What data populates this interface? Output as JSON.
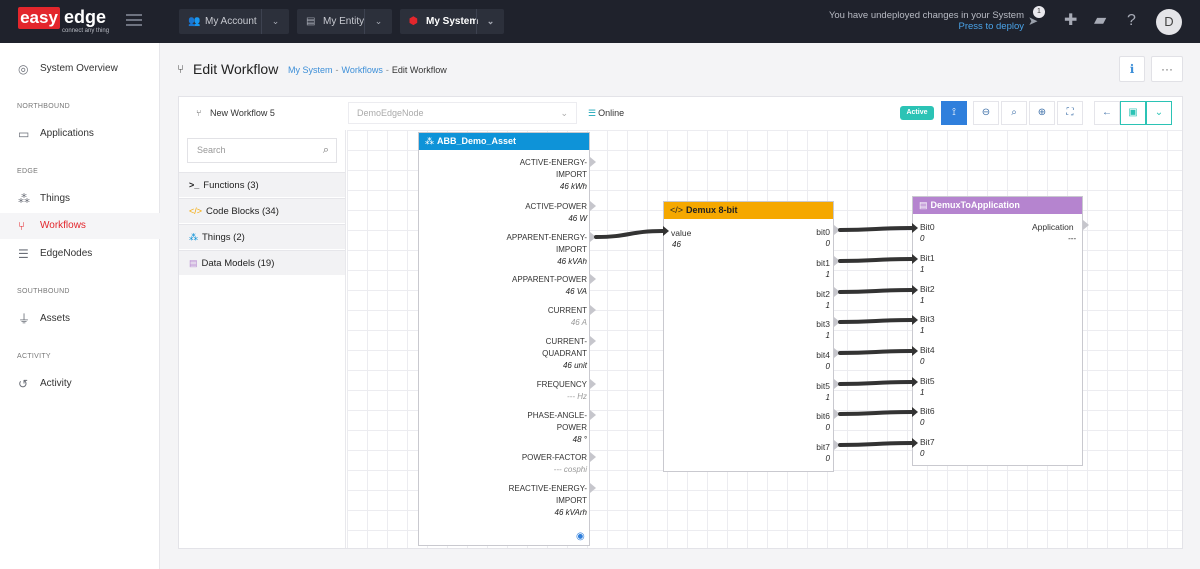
{
  "brand": {
    "word1": "easy",
    "word2": "edge",
    "tagline": "connect any thing"
  },
  "topbar": {
    "account": "My Account",
    "entity": "My Entity",
    "system": "My System",
    "notice_line1": "You have undeployed changes in your System",
    "notice_line2": "Press to deploy",
    "deploy_count": "1",
    "avatar_letter": "D"
  },
  "sidebar": {
    "system_overview": "System Overview",
    "northbound": "NORTHBOUND",
    "applications": "Applications",
    "edge": "EDGE",
    "things": "Things",
    "workflows": "Workflows",
    "edgenodes": "EdgeNodes",
    "southbound": "SOUTHBOUND",
    "assets": "Assets",
    "activity_section": "ACTIVITY",
    "activity": "Activity"
  },
  "header": {
    "title": "Edit Workflow",
    "crumb1": "My System",
    "crumb2": "Workflows",
    "crumb3": "Edit Workflow",
    "sep": "-",
    "more": "···"
  },
  "toolbar": {
    "workflow_name": "New Workflow 5",
    "edge_node": "DemoEdgeNode",
    "status": "Online",
    "state": "Active"
  },
  "palette": {
    "search_placeholder": "Search",
    "functions": "Functions (3)",
    "code_blocks": "Code Blocks (34)",
    "things": "Things (2)",
    "data_models": "Data Models (19)"
  },
  "asset_node": {
    "title": "ABB_Demo_Asset",
    "ports": [
      {
        "label1": "ACTIVE-ENERGY-",
        "label2": "IMPORT",
        "value": "46 kWh",
        "muted": false
      },
      {
        "label1": "ACTIVE-POWER",
        "label2": "",
        "value": "46 W",
        "muted": false
      },
      {
        "label1": "APPARENT-ENERGY-",
        "label2": "IMPORT",
        "value": "46 kVAh",
        "muted": false
      },
      {
        "label1": "APPARENT-POWER",
        "label2": "",
        "value": "46 VA",
        "muted": false
      },
      {
        "label1": "CURRENT",
        "label2": "",
        "value": "46 A",
        "muted": true
      },
      {
        "label1": "CURRENT-",
        "label2": "QUADRANT",
        "value": "46 unit",
        "muted": false
      },
      {
        "label1": "FREQUENCY",
        "label2": "",
        "value": "--- Hz",
        "muted": true
      },
      {
        "label1": "PHASE-ANGLE-",
        "label2": "POWER",
        "value": "48 °",
        "muted": false
      },
      {
        "label1": "POWER-FACTOR",
        "label2": "",
        "value": "--- cosphi",
        "muted": true
      },
      {
        "label1": "REACTIVE-ENERGY-",
        "label2": "IMPORT",
        "value": "46 kVArh",
        "muted": false
      }
    ]
  },
  "demux_node": {
    "title": "Demux 8-bit",
    "input_label": "value",
    "input_value": "46",
    "outputs": [
      {
        "label": "bit0",
        "value": "0"
      },
      {
        "label": "bit1",
        "value": "1"
      },
      {
        "label": "bit2",
        "value": "1"
      },
      {
        "label": "bit3",
        "value": "1"
      },
      {
        "label": "bit4",
        "value": "0"
      },
      {
        "label": "bit5",
        "value": "1"
      },
      {
        "label": "bit6",
        "value": "0"
      },
      {
        "label": "bit7",
        "value": "0"
      }
    ]
  },
  "app_node": {
    "title": "DemuxToApplication",
    "output_label": "Application",
    "output_value": "---",
    "inputs": [
      {
        "label": "Bit0",
        "value": "0"
      },
      {
        "label": "Bit1",
        "value": "1"
      },
      {
        "label": "Bit2",
        "value": "1"
      },
      {
        "label": "Bit3",
        "value": "1"
      },
      {
        "label": "Bit4",
        "value": "0"
      },
      {
        "label": "Bit5",
        "value": "1"
      },
      {
        "label": "Bit6",
        "value": "0"
      },
      {
        "label": "Bit7",
        "value": "0"
      }
    ]
  },
  "colors": {
    "asset_header": "#0e93d8",
    "demux_header": "#f5a800",
    "app_header": "#b584cf",
    "accent_red": "#e3262c",
    "active": "#2bc3b5"
  }
}
